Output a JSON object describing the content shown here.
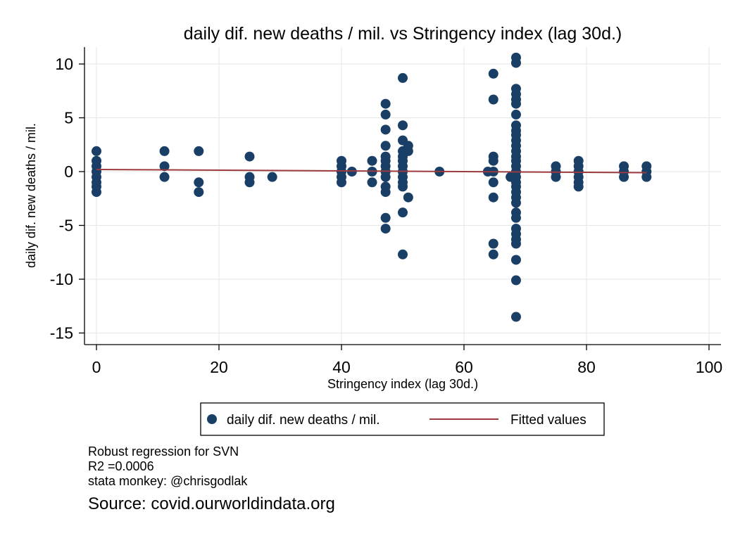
{
  "chart_data": {
    "type": "scatter",
    "title": "daily dif. new deaths / mil. vs Stringency index (lag 30d.)",
    "xlabel": "Stringency index (lag 30d.)",
    "ylabel": "daily dif. new deaths / mil.",
    "xlim": [
      0,
      100
    ],
    "ylim": [
      -15,
      10
    ],
    "xticks": [
      0,
      20,
      40,
      60,
      80,
      100
    ],
    "yticks": [
      10,
      5,
      0,
      -5,
      -10,
      -15
    ],
    "grid": true,
    "legend_position": "bottom",
    "marker_color": "#1a3f66",
    "line_color": "#9c3a3f",
    "series": [
      {
        "name": "daily dif. new deaths / mil.",
        "kind": "scatter",
        "points": [
          [
            0,
            1.9
          ],
          [
            0,
            1.0
          ],
          [
            0,
            0.5
          ],
          [
            0,
            0
          ],
          [
            0,
            -0.5
          ],
          [
            0,
            -1.0
          ],
          [
            0,
            -1.4
          ],
          [
            0,
            -1.9
          ],
          [
            11.1,
            1.9
          ],
          [
            11.1,
            0.5
          ],
          [
            11.1,
            -0.5
          ],
          [
            16.7,
            1.9
          ],
          [
            16.7,
            -1.0
          ],
          [
            16.7,
            -1.9
          ],
          [
            25,
            1.4
          ],
          [
            25,
            -0.5
          ],
          [
            25,
            -1.0
          ],
          [
            28.7,
            -0.5
          ],
          [
            40,
            1.0
          ],
          [
            40,
            0.5
          ],
          [
            40,
            0
          ],
          [
            40,
            -0.5
          ],
          [
            40,
            -1.0
          ],
          [
            41.7,
            0
          ],
          [
            45,
            1.0
          ],
          [
            45,
            0
          ],
          [
            45,
            -1.0
          ],
          [
            47.2,
            6.3
          ],
          [
            47.2,
            5.3
          ],
          [
            47.2,
            3.9
          ],
          [
            47.2,
            2.4
          ],
          [
            47.2,
            1.4
          ],
          [
            47.2,
            1.0
          ],
          [
            47.2,
            0.5
          ],
          [
            47.2,
            0
          ],
          [
            47.2,
            -0.5
          ],
          [
            47.2,
            -1.4
          ],
          [
            47.2,
            -1.9
          ],
          [
            47.2,
            -4.3
          ],
          [
            47.2,
            -5.3
          ],
          [
            50,
            8.7
          ],
          [
            50,
            4.3
          ],
          [
            50,
            2.9
          ],
          [
            50,
            1.9
          ],
          [
            50,
            1.4
          ],
          [
            50,
            1.0
          ],
          [
            50,
            0.5
          ],
          [
            50,
            0
          ],
          [
            50,
            -0.5
          ],
          [
            50,
            -1.0
          ],
          [
            50,
            -1.4
          ],
          [
            50,
            -3.8
          ],
          [
            50,
            -7.7
          ],
          [
            50.9,
            2.4
          ],
          [
            50.9,
            1.9
          ],
          [
            50.9,
            -2.4
          ],
          [
            56,
            0
          ],
          [
            63.9,
            0
          ],
          [
            64.8,
            9.1
          ],
          [
            64.8,
            6.7
          ],
          [
            64.8,
            1.4
          ],
          [
            64.8,
            1.0
          ],
          [
            64.8,
            0
          ],
          [
            64.8,
            -1.0
          ],
          [
            64.8,
            -2.4
          ],
          [
            64.8,
            -6.7
          ],
          [
            64.8,
            -7.7
          ],
          [
            67.6,
            -0.5
          ],
          [
            68.5,
            10.6
          ],
          [
            68.5,
            10.1
          ],
          [
            68.5,
            7.7
          ],
          [
            68.5,
            7.2
          ],
          [
            68.5,
            6.7
          ],
          [
            68.5,
            6.3
          ],
          [
            68.5,
            5.3
          ],
          [
            68.5,
            4.3
          ],
          [
            68.5,
            3.8
          ],
          [
            68.5,
            3.4
          ],
          [
            68.5,
            2.9
          ],
          [
            68.5,
            2.4
          ],
          [
            68.5,
            1.9
          ],
          [
            68.5,
            1.4
          ],
          [
            68.5,
            1.0
          ],
          [
            68.5,
            0.5
          ],
          [
            68.5,
            0
          ],
          [
            68.5,
            -0.5
          ],
          [
            68.5,
            -1.0
          ],
          [
            68.5,
            -1.4
          ],
          [
            68.5,
            -1.9
          ],
          [
            68.5,
            -2.4
          ],
          [
            68.5,
            -2.9
          ],
          [
            68.5,
            -3.8
          ],
          [
            68.5,
            -4.3
          ],
          [
            68.5,
            -5.3
          ],
          [
            68.5,
            -5.8
          ],
          [
            68.5,
            -6.3
          ],
          [
            68.5,
            -6.7
          ],
          [
            68.5,
            -8.2
          ],
          [
            68.5,
            -10.1
          ],
          [
            68.5,
            -13.5
          ],
          [
            75,
            0.5
          ],
          [
            75,
            0
          ],
          [
            75,
            -0.5
          ],
          [
            78.7,
            1.0
          ],
          [
            78.7,
            0.5
          ],
          [
            78.7,
            0
          ],
          [
            78.7,
            -0.5
          ],
          [
            78.7,
            -1.0
          ],
          [
            78.7,
            -1.4
          ],
          [
            86.1,
            0.5
          ],
          [
            86.1,
            0
          ],
          [
            86.1,
            -0.5
          ],
          [
            89.8,
            0.5
          ],
          [
            89.8,
            0
          ],
          [
            89.8,
            -0.5
          ]
        ]
      },
      {
        "name": "Fitted values",
        "kind": "line",
        "points": [
          [
            0,
            0.2
          ],
          [
            89.8,
            -0.1
          ]
        ]
      }
    ]
  },
  "notes": {
    "line1": "Robust regression for SVN",
    "line2": "R2 =0.0006",
    "line3": "stata monkey: @chrisgodlak"
  },
  "source": "Source: covid.ourworldindata.org"
}
